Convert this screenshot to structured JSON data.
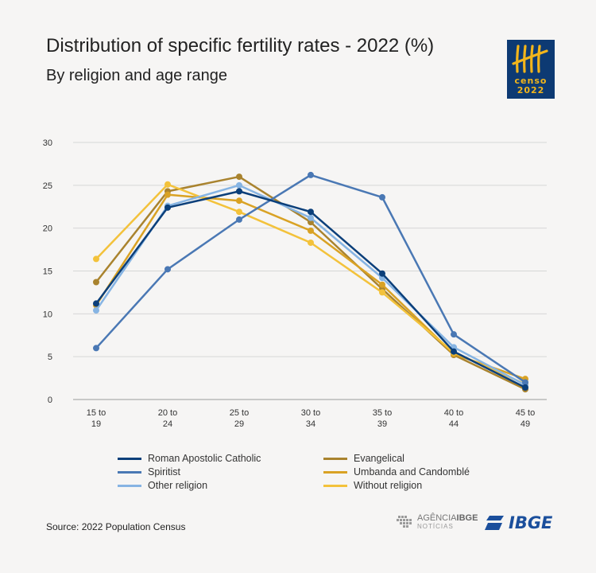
{
  "header": {
    "title": "Distribution of specific fertility rates - 2022 (%)",
    "subtitle": "By religion and age range"
  },
  "logo": {
    "line1": "censo",
    "line2": "2022"
  },
  "colors": {
    "Roman Apostolic Catholic": "#0b3f7a",
    "Evangelical": "#a9832e",
    "Spiritist": "#4a78b4",
    "Umbanda and Candomblé": "#d9a224",
    "Other religion": "#86b4e3",
    "Without religion": "#f3c23b"
  },
  "chart_data": {
    "type": "line",
    "categories": [
      "15 to 19",
      "20 to 24",
      "25 to 29",
      "30 to 34",
      "35 to 39",
      "40 to 44",
      "45 to 49"
    ],
    "ylim": [
      0,
      30
    ],
    "yticks": [
      0,
      5,
      10,
      15,
      20,
      25,
      30
    ],
    "grid": true,
    "legend_position": "bottom",
    "series": [
      {
        "name": "Evangelical",
        "values": [
          13.7,
          24.3,
          26.0,
          20.7,
          12.9,
          5.2,
          1.2
        ]
      },
      {
        "name": "Umbanda and Candomblé",
        "values": [
          11.0,
          23.9,
          23.2,
          19.7,
          13.4,
          5.3,
          2.4
        ]
      },
      {
        "name": "Without religion",
        "values": [
          16.4,
          25.1,
          21.9,
          18.3,
          12.5,
          5.5,
          1.8
        ]
      },
      {
        "name": "Other religion",
        "values": [
          10.4,
          22.6,
          25.0,
          21.2,
          14.2,
          6.1,
          1.7
        ]
      },
      {
        "name": "Spiritist",
        "values": [
          6.0,
          15.2,
          21.0,
          26.2,
          23.6,
          7.6,
          2.0
        ]
      },
      {
        "name": "Roman Apostolic Catholic",
        "values": [
          11.2,
          22.4,
          24.3,
          21.9,
          14.7,
          5.6,
          1.4
        ]
      }
    ]
  },
  "legend": {
    "items": [
      "Roman Apostolic Catholic",
      "Evangelical",
      "Spiritist",
      "Umbanda and Candomblé",
      "Other religion",
      "Without religion"
    ]
  },
  "footer": {
    "source": "Source: 2022 Population Census",
    "agencia_prefix": "AGÊNCIA",
    "agencia_brand": "IBGE",
    "agencia_sub": "NOTÍCIAS",
    "ibge": "IBGE"
  }
}
